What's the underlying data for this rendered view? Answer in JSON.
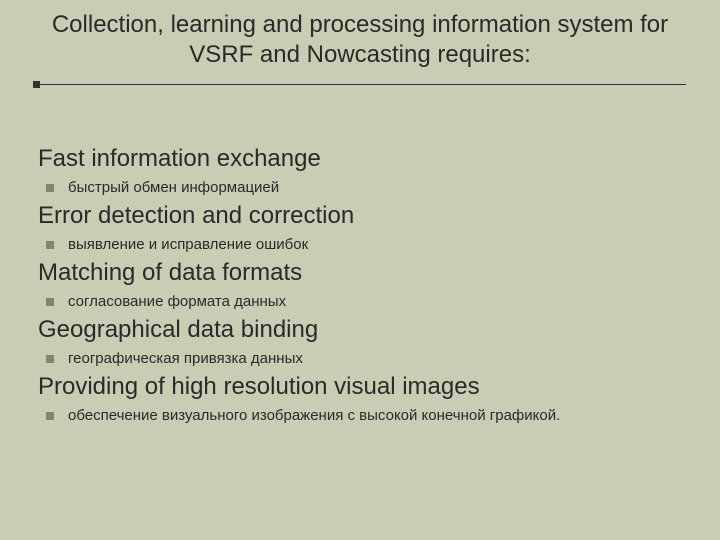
{
  "colors": {
    "background": "#c9cdb3",
    "text": "#2a2a2a",
    "rule": "#333333",
    "bullet": "#81866d"
  },
  "typography": {
    "title_fontsize": 24,
    "heading_fontsize": 24,
    "bullet_fontsize": 15,
    "font_family": "Arial"
  },
  "title": "Collection, learning and processing information system for VSRF and Nowcasting requires:",
  "sections": [
    {
      "heading": "Fast information exchange",
      "sub": "быстрый обмен информацией"
    },
    {
      "heading": "Error detection and correction",
      "sub": "выявление и исправление ошибок"
    },
    {
      "heading": "Matching of data formats",
      "sub": "согласование формата данных"
    },
    {
      "heading": "Geographical data binding",
      "sub": "географическая привязка данных"
    },
    {
      "heading": "Providing of high resolution visual images",
      "sub": "обеспечение визуального изображения с высокой конечной графикой."
    }
  ]
}
